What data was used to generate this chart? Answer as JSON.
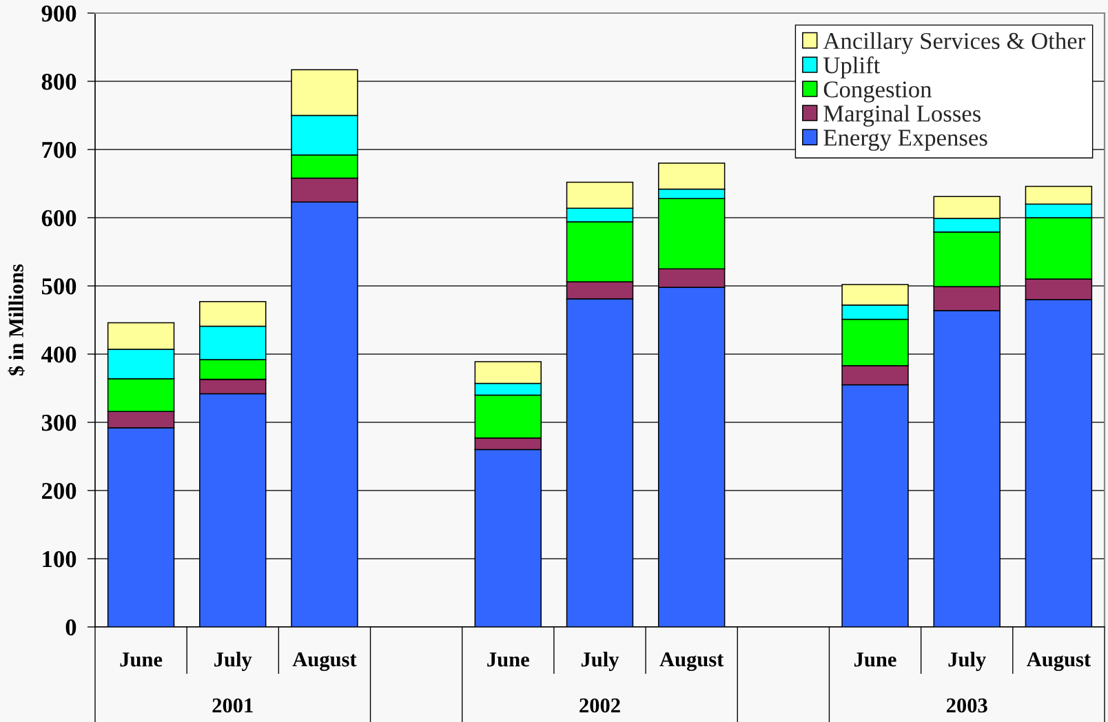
{
  "chart_data": {
    "type": "bar",
    "stacked": true,
    "ylabel": "$ in Millions",
    "categories": [
      "June",
      "July",
      "August",
      null,
      "June",
      "July",
      "August",
      null,
      "June",
      "July",
      "August"
    ],
    "series": [
      {
        "name": "Energy Expenses",
        "color": "#3366ff",
        "values": [
          292,
          342,
          623,
          null,
          260,
          481,
          498,
          null,
          355,
          464,
          480
        ]
      },
      {
        "name": "Marginal Losses",
        "color": "#993366",
        "values": [
          24,
          21,
          35,
          null,
          17,
          25,
          27,
          null,
          28,
          35,
          30
        ]
      },
      {
        "name": "Congestion",
        "color": "#00ff00",
        "values": [
          48,
          29,
          34,
          null,
          63,
          88,
          103,
          null,
          68,
          80,
          90
        ]
      },
      {
        "name": "Uplift",
        "color": "#00ffff",
        "values": [
          43,
          49,
          58,
          null,
          17,
          20,
          14,
          null,
          21,
          20,
          20
        ]
      },
      {
        "name": "Ancillary Services & Other",
        "color": "#ffff99",
        "values": [
          39,
          36,
          67,
          null,
          32,
          38,
          38,
          null,
          30,
          32,
          26
        ]
      }
    ],
    "ylim": [
      0,
      900
    ],
    "yticks": [
      0,
      100,
      200,
      300,
      400,
      500,
      600,
      700,
      800,
      900
    ],
    "grid": "y",
    "legend": "top right",
    "annotations": [
      "2001",
      "2002",
      "2003"
    ]
  }
}
